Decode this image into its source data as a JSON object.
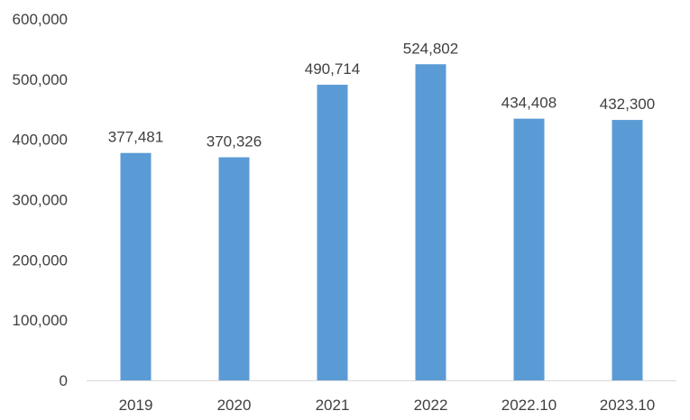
{
  "chart_data": {
    "type": "bar",
    "title": "",
    "xlabel": "",
    "ylabel": "",
    "categories": [
      "2019",
      "2020",
      "2021",
      "2022",
      "2022.10",
      "2023.10"
    ],
    "values": [
      377481,
      370326,
      490714,
      524802,
      434408,
      432300
    ],
    "value_labels": [
      "377,481",
      "370,326",
      "490,714",
      "524,802",
      "434,408",
      "432,300"
    ],
    "ylim": [
      0,
      600000
    ],
    "y_ticks": [
      0,
      100000,
      200000,
      300000,
      400000,
      500000,
      600000
    ],
    "y_tick_labels": [
      "0",
      "100,000",
      "200,000",
      "300,000",
      "400,000",
      "500,000",
      "600,000"
    ],
    "grid": false,
    "legend": "none",
    "colors": {
      "bar": "#5B9BD5",
      "axis": "#D9D9D9",
      "text": "#404040"
    }
  }
}
